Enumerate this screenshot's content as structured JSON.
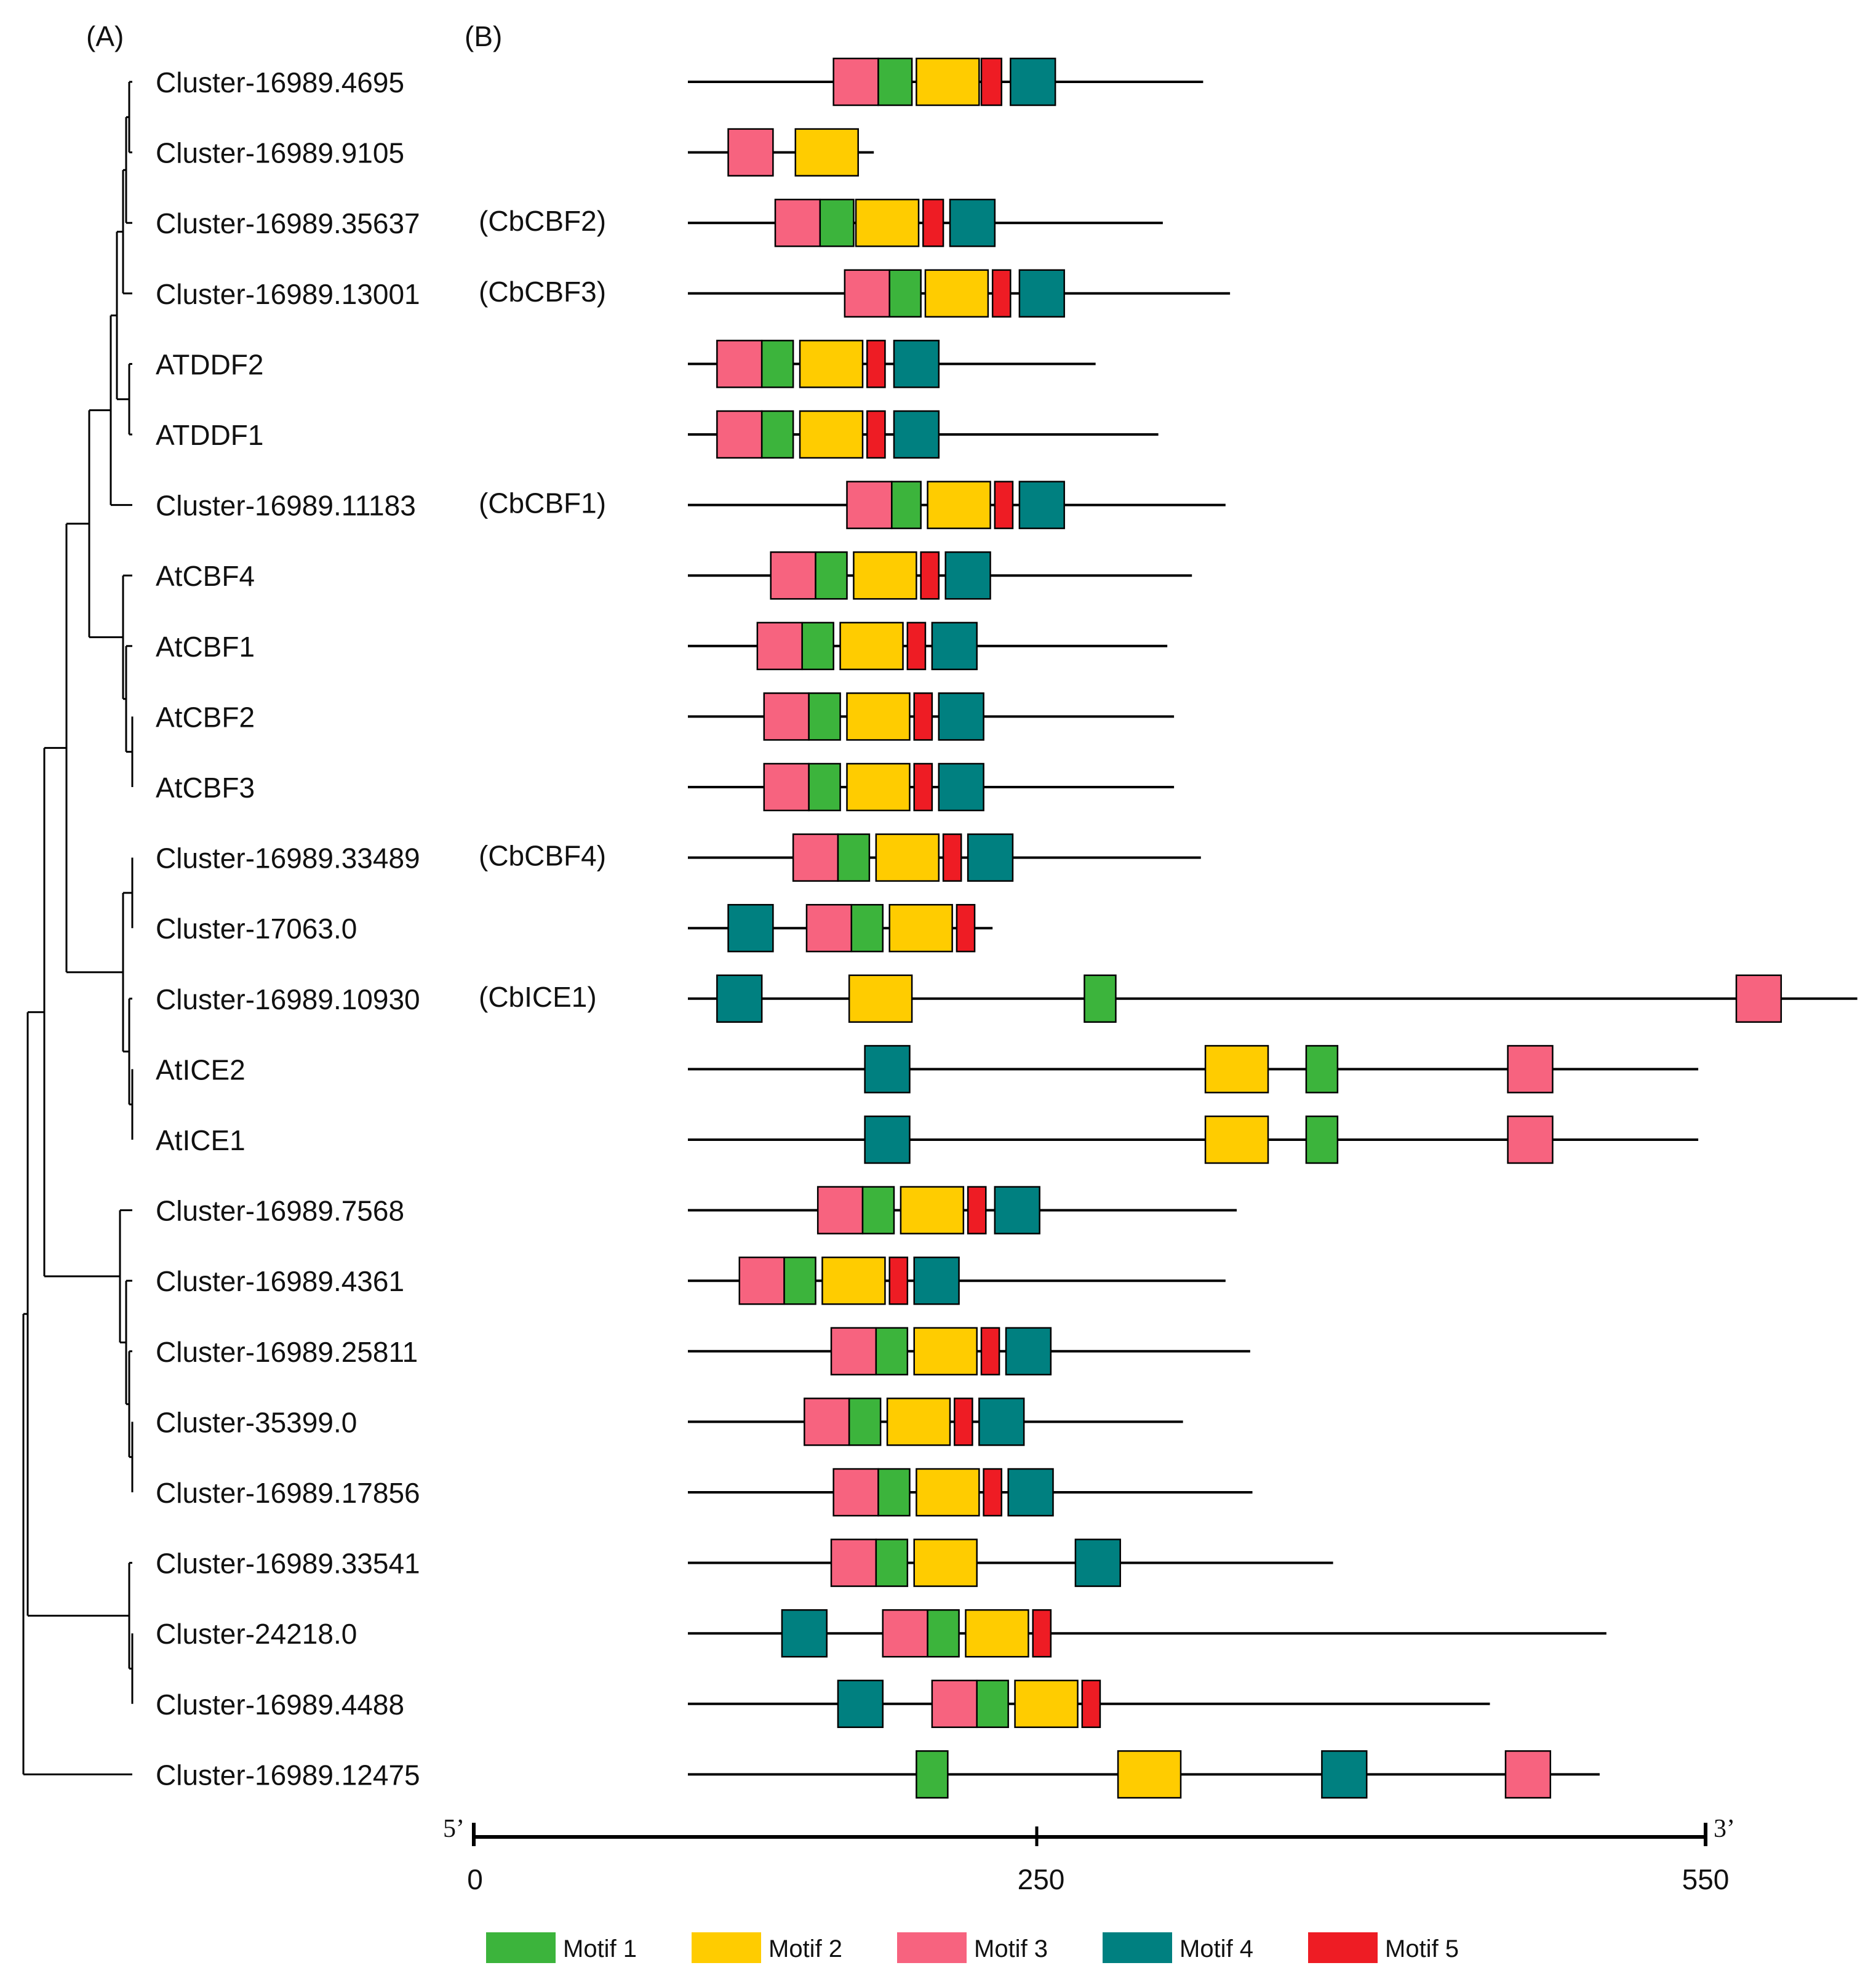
{
  "panels": {
    "tree": "(A)",
    "motifs": "(B)"
  },
  "motif_types": [
    {
      "id": 1,
      "name": "Motif 1",
      "color": "#3cb43c"
    },
    {
      "id": 2,
      "name": "Motif 2",
      "color": "#ffcc00"
    },
    {
      "id": 3,
      "name": "Motif 3",
      "color": "#f7637f"
    },
    {
      "id": 4,
      "name": "Motif 4",
      "color": "#008080"
    },
    {
      "id": 5,
      "name": "Motif 5",
      "color": "#ee1c24"
    }
  ],
  "scale": {
    "start_label": "5’",
    "end_label": "3’",
    "ticks": [
      {
        "value": 0,
        "label": "0"
      },
      {
        "value": 250,
        "label": "250"
      },
      {
        "value": 550,
        "label": "550"
      }
    ]
  },
  "genes": [
    {
      "name": "Cluster-16989.4695",
      "tag": "",
      "length": 230,
      "motifs": [
        [
          3,
          65,
          85
        ],
        [
          1,
          85,
          100
        ],
        [
          2,
          102,
          130
        ],
        [
          5,
          131,
          140
        ],
        [
          4,
          144,
          164
        ]
      ]
    },
    {
      "name": "Cluster-16989.9105",
      "tag": "",
      "length": 83,
      "motifs": [
        [
          3,
          18,
          38
        ],
        [
          2,
          48,
          76
        ]
      ]
    },
    {
      "name": "Cluster-16989.35637",
      "tag": "(CbCBF2)",
      "length": 212,
      "motifs": [
        [
          3,
          39,
          59
        ],
        [
          1,
          59,
          74
        ],
        [
          2,
          75,
          103
        ],
        [
          5,
          105,
          114
        ],
        [
          4,
          117,
          137
        ]
      ]
    },
    {
      "name": "Cluster-16989.13001",
      "tag": "(CbCBF3)",
      "length": 242,
      "motifs": [
        [
          3,
          70,
          90
        ],
        [
          1,
          90,
          104
        ],
        [
          2,
          106,
          134
        ],
        [
          5,
          136,
          144
        ],
        [
          4,
          148,
          168
        ]
      ]
    },
    {
      "name": "ATDDF2",
      "tag": "",
      "length": 182,
      "motifs": [
        [
          3,
          13,
          33
        ],
        [
          1,
          33,
          47
        ],
        [
          2,
          50,
          78
        ],
        [
          5,
          80,
          88
        ],
        [
          4,
          92,
          112
        ]
      ]
    },
    {
      "name": "ATDDF1",
      "tag": "",
      "length": 210,
      "motifs": [
        [
          3,
          13,
          33
        ],
        [
          1,
          33,
          47
        ],
        [
          2,
          50,
          78
        ],
        [
          5,
          80,
          88
        ],
        [
          4,
          92,
          112
        ]
      ]
    },
    {
      "name": "Cluster-16989.11183",
      "tag": "(CbCBF1)",
      "length": 240,
      "motifs": [
        [
          3,
          71,
          91
        ],
        [
          1,
          91,
          104
        ],
        [
          2,
          107,
          135
        ],
        [
          5,
          137,
          145
        ],
        [
          4,
          148,
          168
        ]
      ]
    },
    {
      "name": "AtCBF4",
      "tag": "",
      "length": 225,
      "motifs": [
        [
          3,
          37,
          57
        ],
        [
          1,
          57,
          71
        ],
        [
          2,
          74,
          102
        ],
        [
          5,
          104,
          112
        ],
        [
          4,
          115,
          135
        ]
      ]
    },
    {
      "name": "AtCBF1",
      "tag": "",
      "length": 214,
      "motifs": [
        [
          3,
          31,
          51
        ],
        [
          1,
          51,
          65
        ],
        [
          2,
          68,
          96
        ],
        [
          5,
          98,
          106
        ],
        [
          4,
          109,
          129
        ]
      ]
    },
    {
      "name": "AtCBF2",
      "tag": "",
      "length": 217,
      "motifs": [
        [
          3,
          34,
          54
        ],
        [
          1,
          54,
          68
        ],
        [
          2,
          71,
          99
        ],
        [
          5,
          101,
          109
        ],
        [
          4,
          112,
          132
        ]
      ]
    },
    {
      "name": "AtCBF3",
      "tag": "",
      "length": 217,
      "motifs": [
        [
          3,
          34,
          54
        ],
        [
          1,
          54,
          68
        ],
        [
          2,
          71,
          99
        ],
        [
          5,
          101,
          109
        ],
        [
          4,
          112,
          132
        ]
      ]
    },
    {
      "name": "Cluster-16989.33489",
      "tag": "(CbCBF4)",
      "length": 229,
      "motifs": [
        [
          3,
          47,
          67
        ],
        [
          1,
          67,
          81
        ],
        [
          2,
          84,
          112
        ],
        [
          5,
          114,
          122
        ],
        [
          4,
          125,
          145
        ]
      ]
    },
    {
      "name": "Cluster-17063.0",
      "tag": "",
      "length": 136,
      "motifs": [
        [
          4,
          18,
          38
        ],
        [
          3,
          53,
          73
        ],
        [
          1,
          73,
          87
        ],
        [
          2,
          90,
          118
        ],
        [
          5,
          120,
          128
        ]
      ]
    },
    {
      "name": "Cluster-16989.10930",
      "tag": "(CbICE1)",
      "length": 522,
      "motifs": [
        [
          4,
          13,
          33
        ],
        [
          2,
          72,
          100
        ],
        [
          1,
          177,
          191
        ],
        [
          3,
          468,
          488
        ]
      ]
    },
    {
      "name": "AtICE2",
      "tag": "",
      "length": 451,
      "motifs": [
        [
          4,
          79,
          99
        ],
        [
          2,
          231,
          259
        ],
        [
          1,
          276,
          290
        ],
        [
          3,
          366,
          386
        ]
      ]
    },
    {
      "name": "AtICE1",
      "tag": "",
      "length": 451,
      "motifs": [
        [
          4,
          79,
          99
        ],
        [
          2,
          231,
          259
        ],
        [
          1,
          276,
          290
        ],
        [
          3,
          366,
          386
        ]
      ]
    },
    {
      "name": "Cluster-16989.7568",
      "tag": "",
      "length": 245,
      "motifs": [
        [
          3,
          58,
          78
        ],
        [
          1,
          78,
          92
        ],
        [
          2,
          95,
          123
        ],
        [
          5,
          125,
          133
        ],
        [
          4,
          137,
          157
        ]
      ]
    },
    {
      "name": "Cluster-16989.4361",
      "tag": "",
      "length": 240,
      "motifs": [
        [
          3,
          23,
          43
        ],
        [
          1,
          43,
          57
        ],
        [
          2,
          60,
          88
        ],
        [
          5,
          90,
          98
        ],
        [
          4,
          101,
          121
        ]
      ]
    },
    {
      "name": "Cluster-16989.25811",
      "tag": "",
      "length": 251,
      "motifs": [
        [
          3,
          64,
          84
        ],
        [
          1,
          84,
          98
        ],
        [
          2,
          101,
          129
        ],
        [
          5,
          131,
          139
        ],
        [
          4,
          142,
          162
        ]
      ]
    },
    {
      "name": "Cluster-35399.0",
      "tag": "",
      "length": 221,
      "motifs": [
        [
          3,
          52,
          72
        ],
        [
          1,
          72,
          86
        ],
        [
          2,
          89,
          117
        ],
        [
          5,
          119,
          127
        ],
        [
          4,
          130,
          150
        ]
      ]
    },
    {
      "name": "Cluster-16989.17856",
      "tag": "",
      "length": 252,
      "motifs": [
        [
          3,
          65,
          85
        ],
        [
          1,
          85,
          99
        ],
        [
          2,
          102,
          130
        ],
        [
          5,
          132,
          140
        ],
        [
          4,
          143,
          163
        ]
      ]
    },
    {
      "name": "Cluster-16989.33541",
      "tag": "",
      "length": 288,
      "motifs": [
        [
          3,
          64,
          84
        ],
        [
          1,
          84,
          98
        ],
        [
          2,
          101,
          129
        ],
        [
          4,
          173,
          193
        ]
      ]
    },
    {
      "name": "Cluster-24218.0",
      "tag": "",
      "length": 410,
      "motifs": [
        [
          4,
          42,
          62
        ],
        [
          3,
          87,
          107
        ],
        [
          1,
          107,
          121
        ],
        [
          2,
          124,
          152
        ],
        [
          5,
          154,
          162
        ]
      ]
    },
    {
      "name": "Cluster-16989.4488",
      "tag": "",
      "length": 358,
      "motifs": [
        [
          4,
          67,
          87
        ],
        [
          3,
          109,
          129
        ],
        [
          1,
          129,
          143
        ],
        [
          2,
          146,
          174
        ],
        [
          5,
          176,
          184
        ]
      ]
    },
    {
      "name": "Cluster-16989.12475",
      "tag": "",
      "length": 407,
      "motifs": [
        [
          1,
          102,
          116
        ],
        [
          2,
          192,
          220
        ],
        [
          4,
          283,
          303
        ],
        [
          3,
          365,
          385
        ]
      ]
    }
  ]
}
